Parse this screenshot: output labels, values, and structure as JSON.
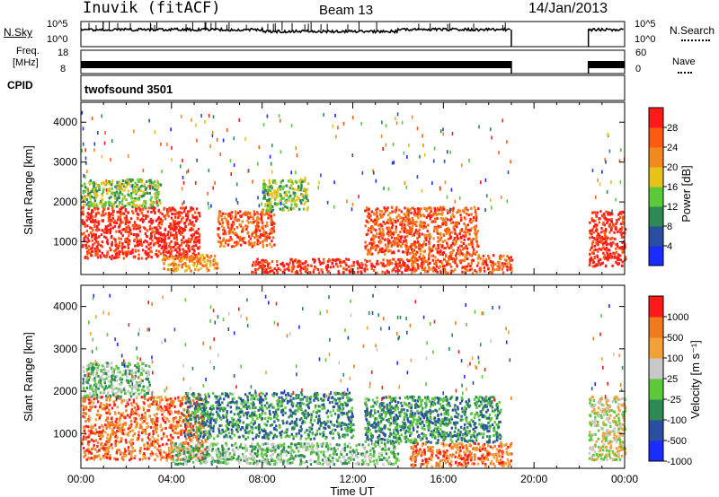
{
  "header": {
    "station": "Inuvik (fitACF)",
    "beam": "Beam 13",
    "date": "14/Jan/2013"
  },
  "noise_panel": {
    "left_label": "N.Sky",
    "left_ticks": [
      "10^5",
      "10^0"
    ],
    "right_ticks": [
      "10^5",
      "10^0"
    ],
    "right_label": "N.Search"
  },
  "freq_panel": {
    "left_label_top": "Freq.",
    "left_label_bottom": "[MHz]",
    "left_ticks": [
      "18",
      "8"
    ],
    "right_ticks": [
      "60",
      "0"
    ],
    "right_label": "Nave"
  },
  "cpid_panel": {
    "label": "CPID",
    "value": "twofsound 3501"
  },
  "x_axis": {
    "label": "Time UT",
    "ticks": [
      "00:00",
      "04:00",
      "08:00",
      "12:00",
      "16:00",
      "20:00",
      "00:00"
    ]
  },
  "chart_data": [
    {
      "type": "heatmap",
      "name": "power",
      "ylabel": "Slant Range [km]",
      "yticks": [
        1000,
        2000,
        3000,
        4000
      ],
      "ylim": [
        180,
        4500
      ],
      "xlim_hours": [
        0,
        24
      ],
      "colorbar_label": "Power [dB]",
      "colorbar_ticks": [
        "28",
        "24",
        "20",
        "16",
        "12",
        "8",
        "4"
      ],
      "colorbar_colors": [
        "#1a2cff",
        "#2a4fa0",
        "#2e8a55",
        "#5cc93a",
        "#e6c21a",
        "#f08a1e",
        "#ff5a12",
        "#ff1a1a"
      ],
      "data_gaps_hours": [
        [
          19.0,
          22.4
        ]
      ],
      "regions": [
        {
          "t0": 0.0,
          "t1": 5.2,
          "r0": 600,
          "r1": 1900,
          "level": 7
        },
        {
          "t0": 0.0,
          "t1": 3.5,
          "r0": 1900,
          "r1": 2600,
          "level": 3
        },
        {
          "t0": 3.5,
          "t1": 6.0,
          "r0": 300,
          "r1": 700,
          "level": 5
        },
        {
          "t0": 6.0,
          "t1": 8.5,
          "r0": 900,
          "r1": 1800,
          "level": 6
        },
        {
          "t0": 8.0,
          "t1": 10.0,
          "r0": 1800,
          "r1": 2600,
          "level": 3
        },
        {
          "t0": 7.5,
          "t1": 14.5,
          "r0": 250,
          "r1": 600,
          "level": 7
        },
        {
          "t0": 12.5,
          "t1": 17.5,
          "r0": 700,
          "r1": 1900,
          "level": 6
        },
        {
          "t0": 14.5,
          "t1": 19.0,
          "r0": 250,
          "r1": 700,
          "level": 6
        },
        {
          "t0": 22.4,
          "t1": 24.0,
          "r0": 400,
          "r1": 1800,
          "level": 7
        }
      ]
    },
    {
      "type": "heatmap",
      "name": "velocity",
      "ylabel": "Slant Range [km]",
      "yticks": [
        1000,
        2000,
        3000,
        4000
      ],
      "ylim": [
        180,
        4500
      ],
      "xlim_hours": [
        0,
        24
      ],
      "colorbar_label": "Velocity [m s⁻¹]",
      "colorbar_ticks": [
        "1000",
        "500",
        "100",
        "25",
        "-25",
        "-100",
        "-500",
        "-1000"
      ],
      "colorbar_colors": [
        "#1a2cff",
        "#2a4fa0",
        "#2e8a55",
        "#5cc93a",
        "#c8c8c8",
        "#f2a03a",
        "#f07a1e",
        "#ff1a1a"
      ],
      "data_gaps_hours": [
        [
          19.0,
          22.4
        ]
      ],
      "regions": [
        {
          "t0": 0.0,
          "t1": 5.5,
          "r0": 400,
          "r1": 1900,
          "level": 6
        },
        {
          "t0": 0.0,
          "t1": 3.0,
          "r0": 1900,
          "r1": 2700,
          "level": 3
        },
        {
          "t0": 4.5,
          "t1": 12.0,
          "r0": 900,
          "r1": 2000,
          "level": 2
        },
        {
          "t0": 4.0,
          "t1": 14.0,
          "r0": 300,
          "r1": 800,
          "level": 3
        },
        {
          "t0": 12.5,
          "t1": 18.5,
          "r0": 800,
          "r1": 1900,
          "level": 2
        },
        {
          "t0": 14.5,
          "t1": 19.0,
          "r0": 250,
          "r1": 800,
          "level": 6
        },
        {
          "t0": 22.4,
          "t1": 24.0,
          "r0": 400,
          "r1": 1900,
          "level": 4
        }
      ]
    }
  ]
}
